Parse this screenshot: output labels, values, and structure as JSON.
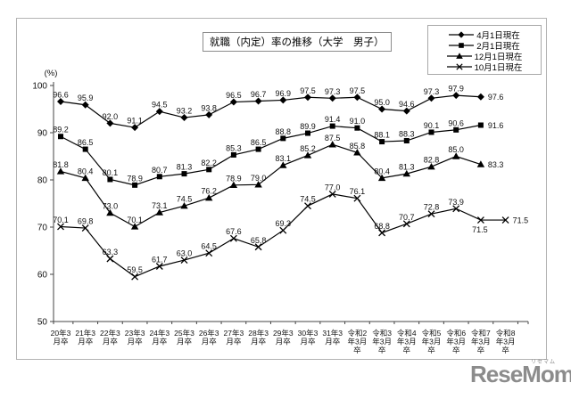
{
  "chart_data": {
    "type": "line",
    "title": "就職（内定）率の推移（大学　男子）",
    "y_unit": "(%)",
    "y_axis": {
      "min": 50,
      "max": 100,
      "step": 10
    },
    "grid": false,
    "legend_position": "top-right",
    "categories": [
      "20年3月卒",
      "21年3月卒",
      "22年3月卒",
      "23年3月卒",
      "24年3月卒",
      "25年3月卒",
      "26年3月卒",
      "27年3月卒",
      "28年3月卒",
      "29年3月卒",
      "30年3月卒",
      "31年3月卒",
      "令和2年3月卒",
      "令和3年3月卒",
      "令和4年3月卒",
      "令和5年3月卒",
      "令和6年3月卒",
      "令和7年3月卒",
      "令和8年3月卒"
    ],
    "category_label_lines": [
      [
        "20年3",
        "月卒"
      ],
      [
        "21年3",
        "月卒"
      ],
      [
        "22年3",
        "月卒"
      ],
      [
        "23年3",
        "月卒"
      ],
      [
        "24年3",
        "月卒"
      ],
      [
        "25年3",
        "月卒"
      ],
      [
        "26年3",
        "月卒"
      ],
      [
        "27年3",
        "月卒"
      ],
      [
        "28年3",
        "月卒"
      ],
      [
        "29年3",
        "月卒"
      ],
      [
        "30年3",
        "月卒"
      ],
      [
        "31年3",
        "月卒"
      ],
      [
        "令和2",
        "年3月",
        "卒"
      ],
      [
        "令和3",
        "年3月",
        "卒"
      ],
      [
        "令和4",
        "年3月",
        "卒"
      ],
      [
        "令和5",
        "年3月",
        "卒"
      ],
      [
        "令和6",
        "年3月",
        "卒"
      ],
      [
        "令和7",
        "年3月",
        "卒"
      ],
      [
        "令和8",
        "年3月",
        "卒"
      ]
    ],
    "series": [
      {
        "name": "4月1日現在",
        "marker": "diamond",
        "color": "#000000",
        "values": [
          96.6,
          95.9,
          92.0,
          91.1,
          94.5,
          93.2,
          93.8,
          96.5,
          96.7,
          96.9,
          97.5,
          97.3,
          97.5,
          95.0,
          94.6,
          97.3,
          97.9,
          97.6
        ]
      },
      {
        "name": "2月1日現在",
        "marker": "square",
        "color": "#000000",
        "values": [
          89.2,
          86.5,
          80.1,
          78.9,
          80.7,
          81.3,
          82.2,
          85.3,
          86.5,
          88.8,
          89.9,
          91.4,
          91.0,
          88.1,
          88.3,
          90.1,
          90.6,
          91.6
        ]
      },
      {
        "name": "12月1日現在",
        "marker": "triangle",
        "color": "#000000",
        "values": [
          81.8,
          80.4,
          73.0,
          70.1,
          73.1,
          74.5,
          76.2,
          78.9,
          79.0,
          83.1,
          85.2,
          87.5,
          85.8,
          80.4,
          81.3,
          82.8,
          85.0,
          83.3
        ]
      },
      {
        "name": "10月1日現在",
        "marker": "x",
        "color": "#000000",
        "values": [
          70.1,
          69.8,
          63.3,
          59.5,
          61.7,
          63.0,
          64.5,
          67.6,
          65.8,
          69.3,
          74.5,
          77.0,
          76.1,
          68.8,
          70.7,
          72.8,
          73.9,
          71.5,
          71.5
        ]
      }
    ]
  },
  "watermark": {
    "text": "ReseMom.",
    "ruby": "リセマム"
  }
}
